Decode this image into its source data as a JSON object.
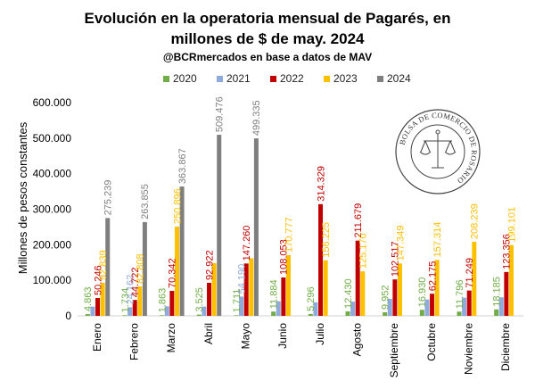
{
  "chart_data": {
    "type": "bar",
    "title_line1": "Evolución en la operatoria  mensual de Pagarés, en",
    "title_line2": "millones de $ de may. 2024",
    "subtitle": "@BCRmercados en base a datos de MAV",
    "ylabel": "Millones de pesos constantes",
    "xlabel": "",
    "ylim": [
      0,
      600000
    ],
    "y_ticks": [
      "0",
      "100.000",
      "200.000",
      "300.000",
      "400.000",
      "500.000",
      "600.000"
    ],
    "y_tick_values": [
      0,
      100000,
      200000,
      300000,
      400000,
      500000,
      600000
    ],
    "grid": false,
    "legend_position": "top",
    "categories": [
      "Enero",
      "Febrero",
      "Marzo",
      "Abril",
      "Mayo",
      "Junio",
      "Julio",
      "Agosto",
      "Septiembre",
      "Octubre",
      "Noviembre",
      "Diciembre"
    ],
    "series": [
      {
        "name": "2020",
        "color": "#70ad47",
        "values": [
          4863,
          1734,
          1863,
          3525,
          1711,
          11884,
          5296,
          12430,
          9952,
          16930,
          11796,
          18185
        ],
        "labels": [
          "4.863",
          "1.734",
          "1.863",
          "3.525",
          "1.711",
          "11.884",
          "5.296",
          "12.430",
          "9.952",
          "16.930",
          "11.796",
          "18.185"
        ]
      },
      {
        "name": "2021",
        "color": "#8faadc",
        "values": [
          26000,
          24162,
          27000,
          26000,
          54190,
          41000,
          38000,
          40000,
          48000,
          46000,
          51000,
          52000
        ],
        "labels": [
          "",
          "24.162",
          "",
          "",
          "54.190",
          "",
          "",
          "",
          "",
          "",
          "",
          ""
        ]
      },
      {
        "name": "2022",
        "color": "#c00000",
        "values": [
          50246,
          44722,
          70342,
          92922,
          147260,
          108053,
          314329,
          211679,
          102517,
          62175,
          71249,
          123356
        ],
        "labels": [
          "50.246",
          "44.722",
          "70.342",
          "92.922",
          "147.260",
          "108.053",
          "314.329",
          "211.679",
          "102.517",
          "62.175",
          "71.249",
          "123.356"
        ]
      },
      {
        "name": "2023",
        "color": "#ffc000",
        "values": [
          92839,
          82808,
          250896,
          148000,
          162000,
          170777,
          156225,
          125170,
          147349,
          157314,
          208239,
          199101
        ],
        "labels": [
          "92.839",
          "82.808",
          "250.896",
          "",
          "",
          "170.777",
          "156.225",
          "125.170",
          "147.349",
          "157.314",
          "208.239",
          "199.101"
        ]
      },
      {
        "name": "2024",
        "color": "#7f7f7f",
        "values": [
          275239,
          263855,
          363867,
          509476,
          499335,
          null,
          null,
          null,
          null,
          null,
          null,
          null
        ],
        "labels": [
          "275.239",
          "263.855",
          "363.867",
          "509.476",
          "499.335",
          "",
          "",
          "",
          "",
          "",
          "",
          ""
        ]
      }
    ],
    "seal_text": "BOLSA DE COMERCIO DE ROSARIO"
  }
}
